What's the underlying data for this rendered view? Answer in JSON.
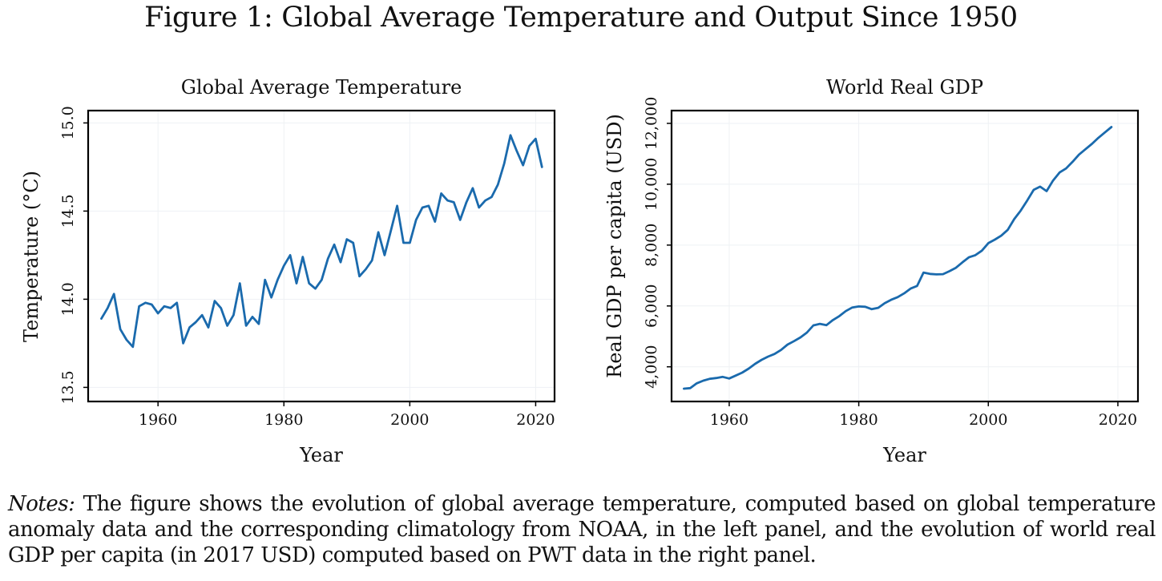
{
  "figure": {
    "title": "Figure 1: Global Average Temperature and Output Since 1950",
    "notes_label": "Notes:",
    "notes_text": " The figure shows the evolution of global average temperature, computed based on global temperature anomaly data and the corresponding climatology from NOAA, in the left panel, and the evolution of world real GDP per capita (in 2017 USD) computed based on PWT data in the right panel.",
    "line_color": "#1a6aad"
  },
  "chart_data": [
    {
      "type": "line",
      "title": "Global Average Temperature",
      "xlabel": "Year",
      "ylabel": "Temperature (°C)",
      "xlim": [
        1948.9,
        2023.0
      ],
      "ylim": [
        13.42,
        15.07
      ],
      "xticks": [
        1960,
        1980,
        2000,
        2020
      ],
      "xtick_labels": [
        "1960",
        "1980",
        "2000",
        "2020"
      ],
      "yticks": [
        13.5,
        14.0,
        14.5,
        15.0
      ],
      "ytick_labels": [
        "13.5",
        "14.0",
        "14.5",
        "15.0"
      ],
      "grid": true,
      "series": [
        {
          "name": "Global Average Temperature",
          "x": [
            1951,
            1952,
            1953,
            1954,
            1955,
            1956,
            1957,
            1958,
            1959,
            1960,
            1961,
            1962,
            1963,
            1964,
            1965,
            1966,
            1967,
            1968,
            1969,
            1970,
            1971,
            1972,
            1973,
            1974,
            1975,
            1976,
            1977,
            1978,
            1979,
            1980,
            1981,
            1982,
            1983,
            1984,
            1985,
            1986,
            1987,
            1988,
            1989,
            1990,
            1991,
            1992,
            1993,
            1994,
            1995,
            1996,
            1997,
            1998,
            1999,
            2000,
            2001,
            2002,
            2003,
            2004,
            2005,
            2006,
            2007,
            2008,
            2009,
            2010,
            2011,
            2012,
            2013,
            2014,
            2015,
            2016,
            2017,
            2018,
            2019,
            2020,
            2021
          ],
          "values": [
            13.89,
            13.95,
            14.03,
            13.83,
            13.77,
            13.73,
            13.96,
            13.98,
            13.97,
            13.92,
            13.96,
            13.95,
            13.98,
            13.75,
            13.84,
            13.87,
            13.91,
            13.84,
            13.99,
            13.95,
            13.85,
            13.91,
            14.09,
            13.85,
            13.9,
            13.86,
            14.11,
            14.01,
            14.11,
            14.19,
            14.25,
            14.09,
            14.24,
            14.09,
            14.06,
            14.11,
            14.23,
            14.31,
            14.21,
            14.34,
            14.32,
            14.13,
            14.17,
            14.22,
            14.38,
            14.25,
            14.39,
            14.53,
            14.32,
            14.32,
            14.45,
            14.52,
            14.53,
            14.44,
            14.6,
            14.56,
            14.55,
            14.45,
            14.55,
            14.63,
            14.52,
            14.56,
            14.58,
            14.65,
            14.77,
            14.93,
            14.84,
            14.76,
            14.87,
            14.91,
            14.75
          ]
        }
      ]
    },
    {
      "type": "line",
      "title": "World Real GDP",
      "xlabel": "Year",
      "ylabel": "Real GDP per capita (USD)",
      "xlim": [
        1951.1,
        2023.1
      ],
      "ylim": [
        2860,
        12420
      ],
      "xticks": [
        1960,
        1980,
        2000,
        2020
      ],
      "xtick_labels": [
        "1960",
        "1980",
        "2000",
        "2020"
      ],
      "yticks": [
        4000,
        6000,
        8000,
        10000,
        12000
      ],
      "ytick_labels": [
        "4,000",
        "6,000",
        "8,000",
        "10,000",
        "12,000"
      ],
      "grid": true,
      "series": [
        {
          "name": "World Real GDP per capita",
          "x": [
            1953,
            1954,
            1955,
            1956,
            1957,
            1958,
            1959,
            1960,
            1961,
            1962,
            1963,
            1964,
            1965,
            1966,
            1967,
            1968,
            1969,
            1970,
            1971,
            1972,
            1973,
            1974,
            1975,
            1976,
            1977,
            1978,
            1979,
            1980,
            1981,
            1982,
            1983,
            1984,
            1985,
            1986,
            1987,
            1988,
            1989,
            1990,
            1991,
            1992,
            1993,
            1994,
            1995,
            1996,
            1997,
            1998,
            1999,
            2000,
            2001,
            2002,
            2003,
            2004,
            2005,
            2006,
            2007,
            2008,
            2009,
            2010,
            2011,
            2012,
            2013,
            2014,
            2015,
            2016,
            2017,
            2018,
            2019
          ],
          "values": [
            3282,
            3300,
            3458,
            3545,
            3605,
            3632,
            3668,
            3616,
            3711,
            3808,
            3939,
            4097,
            4229,
            4334,
            4421,
            4553,
            4729,
            4842,
            4966,
            5124,
            5361,
            5413,
            5368,
            5537,
            5668,
            5830,
            5950,
            5984,
            5974,
            5895,
            5939,
            6089,
            6203,
            6289,
            6413,
            6571,
            6658,
            7097,
            7053,
            7037,
            7045,
            7142,
            7255,
            7432,
            7597,
            7668,
            7816,
            8063,
            8180,
            8308,
            8500,
            8853,
            9132,
            9466,
            9816,
            9921,
            9774,
            10124,
            10387,
            10518,
            10737,
            10974,
            11150,
            11326,
            11526,
            11703,
            11879
          ]
        }
      ]
    }
  ]
}
